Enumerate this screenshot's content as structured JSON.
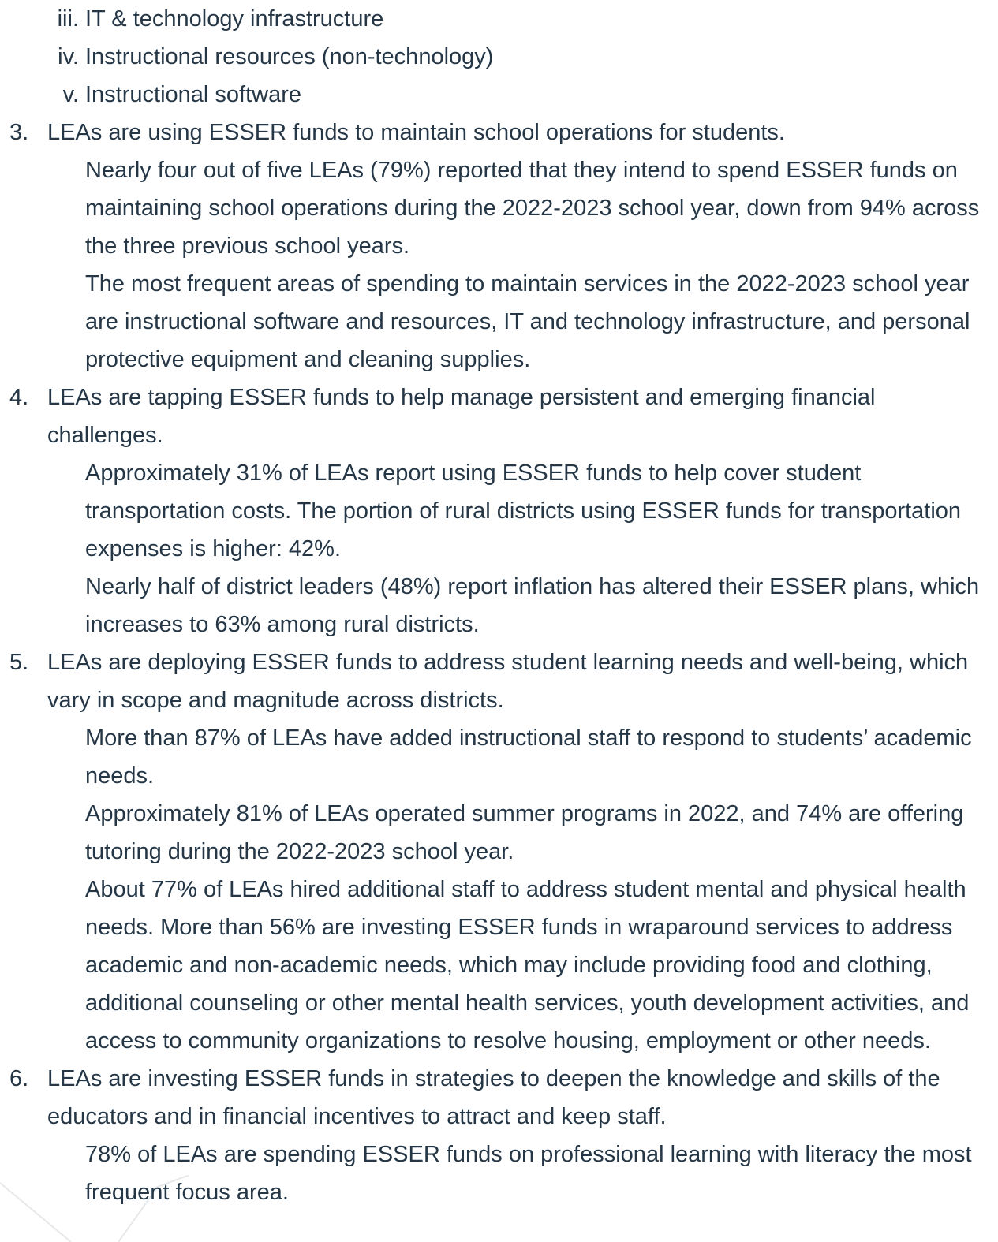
{
  "roman_items": [
    {
      "marker": "iii.",
      "text": "IT & technology infrastructure"
    },
    {
      "marker": "iv.",
      "text": "Instructional resources (non-technology)"
    },
    {
      "marker": "v.",
      "text": "Instructional software"
    }
  ],
  "items": [
    {
      "marker": "3.",
      "text": "LEAs are using ESSER funds to maintain school operations for students.",
      "bullets": [
        "Nearly four out of five LEAs (79%) reported that they intend to spend ESSER funds on maintaining school operations during the 2022-2023 school year, down from 94% across the three previous school years.",
        "The most frequent areas of spending to maintain services in the 2022-2023 school year are instructional software and resources, IT and technology infrastructure, and personal protective equipment and cleaning supplies."
      ]
    },
    {
      "marker": "4.",
      "text": "LEAs are tapping ESSER funds to help manage persistent and emerging financial challenges.",
      "bullets": [
        "Approximately 31% of LEAs report using ESSER funds to help cover student transportation costs. The portion of rural districts using ESSER funds for transportation expenses is higher: 42%.",
        "Nearly half of district leaders (48%) report inflation has altered their ESSER plans, which increases to 63% among rural districts."
      ]
    },
    {
      "marker": "5.",
      "text": "LEAs are deploying ESSER funds to address student learning needs and well-being, which vary in scope and magnitude across districts.",
      "bullets": [
        "More than 87% of LEAs have added instructional staff to respond to students’ academic needs.",
        "Approximately 81% of LEAs operated summer programs in 2022, and 74% are offering tutoring during the 2022-2023 school year.",
        "About 77% of LEAs hired additional staff to address student mental and physical health needs. More than 56% are investing ESSER funds in wraparound services to address academic and non-academic needs, which may include providing food and clothing, additional counseling or other mental health services, youth development activities, and access to community organizations to resolve housing, employment or other needs."
      ]
    },
    {
      "marker": "6.",
      "text": "LEAs are investing ESSER funds in strategies to deepen the knowledge and skills of the educators and in financial incentives to attract and keep staff.",
      "bullets": [
        "78% of LEAs are spending ESSER funds on professional learning with literacy the most frequent focus area."
      ]
    }
  ]
}
